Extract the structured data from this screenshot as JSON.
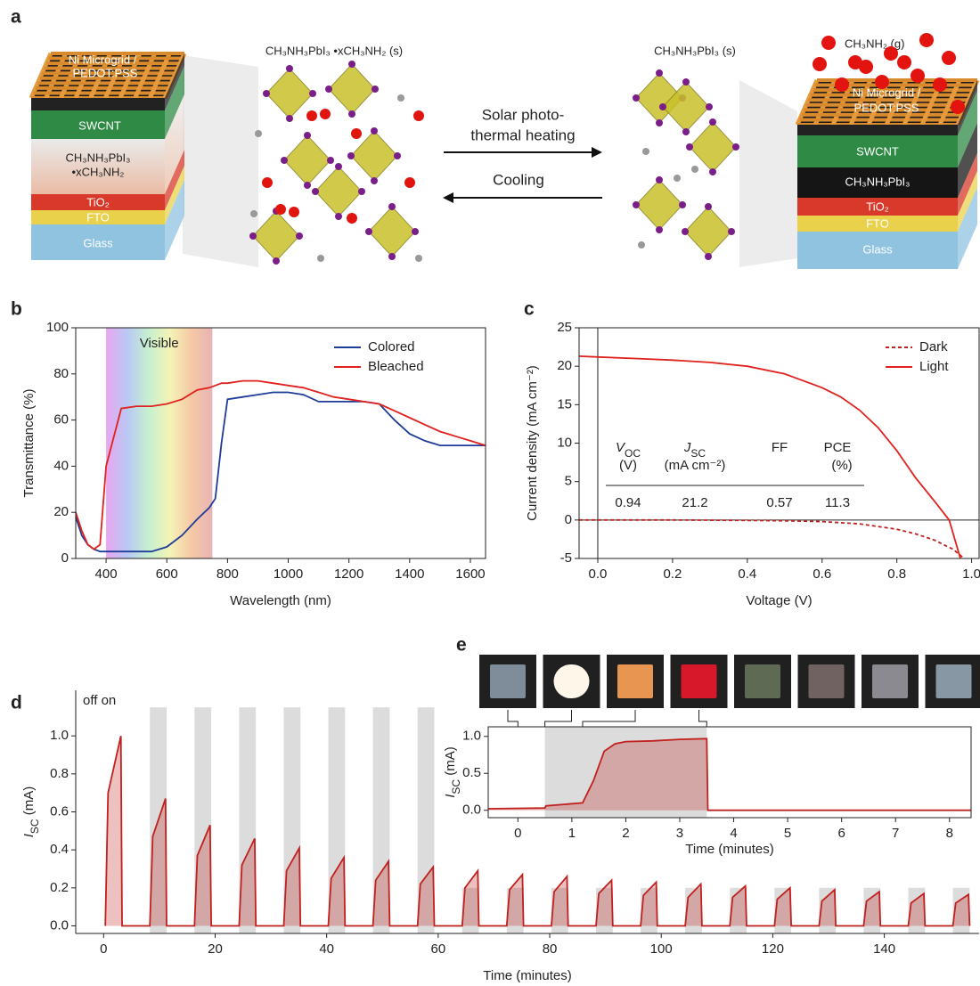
{
  "panel_labels": [
    "a",
    "b",
    "c",
    "d",
    "e"
  ],
  "panel_a": {
    "left_stack": [
      "Ni Microgrid /",
      "PEDOT:PSS",
      "SWCNT",
      "CH₃NH₃PbI₃",
      "•xCH₃NH₂",
      "TiO₂",
      "FTO",
      "Glass"
    ],
    "left_crystal": "CH₃NH₃PbI₃ •xCH₃NH₂ (s)",
    "arrow_forward": [
      "Solar photo-",
      "thermal heating"
    ],
    "arrow_back": "Cooling",
    "right_crystal": "CH₃NH₃PbI₃ (s)",
    "gas": "CH₃NH₂ (g)",
    "right_stack": [
      "Ni Microgrid /",
      "PEDOT:PSS",
      "SWCNT",
      "CH₃NH₃PbI₃",
      "TiO₂",
      "FTO",
      "Glass"
    ]
  },
  "chart_data": [
    {
      "type": "line",
      "xlabel": "Wavelength (nm)",
      "ylabel": "Transmittance (%)",
      "box": true,
      "xlim": [
        300,
        1650
      ],
      "ylim": [
        0,
        100
      ],
      "xticks": [
        400,
        600,
        800,
        1000,
        1200,
        1400,
        1600
      ],
      "yticks": [
        0,
        20,
        40,
        60,
        80,
        100
      ],
      "annotation": "Visible",
      "band": [
        400,
        750
      ],
      "legend": "upper right",
      "series": [
        {
          "name": "Colored",
          "color": "#1f3c99",
          "x": [
            300,
            320,
            340,
            360,
            380,
            400,
            450,
            500,
            550,
            600,
            650,
            700,
            740,
            760,
            780,
            800,
            850,
            900,
            950,
            1000,
            1050,
            1100,
            1150,
            1200,
            1250,
            1300,
            1350,
            1400,
            1450,
            1500,
            1550,
            1600,
            1650
          ],
          "values": [
            18,
            10,
            6,
            4,
            3,
            3,
            3,
            3,
            3,
            5,
            10,
            17,
            22,
            26,
            50,
            69,
            70,
            71,
            72,
            72,
            71,
            68,
            68,
            68,
            68,
            67,
            60,
            54,
            51,
            49,
            49,
            49,
            49
          ]
        },
        {
          "name": "Bleached",
          "color": "#e0211d",
          "x": [
            300,
            320,
            340,
            360,
            380,
            400,
            450,
            500,
            550,
            600,
            650,
            700,
            740,
            760,
            780,
            800,
            850,
            900,
            950,
            1000,
            1050,
            1100,
            1150,
            1200,
            1250,
            1300,
            1350,
            1400,
            1450,
            1500,
            1550,
            1600,
            1650
          ],
          "values": [
            20,
            12,
            6,
            4,
            6,
            40,
            65,
            66,
            66,
            67,
            69,
            73,
            74,
            75,
            76,
            76,
            77,
            77,
            76,
            75,
            74,
            72,
            70,
            69,
            68,
            67,
            64,
            61,
            58,
            55,
            53,
            51,
            49
          ]
        }
      ]
    },
    {
      "type": "line",
      "xlabel": "Voltage (V)",
      "ylabel": "Current density (mA cm⁻²)",
      "box": true,
      "zero_lines": true,
      "xlim": [
        -0.05,
        1.02
      ],
      "ylim": [
        -5,
        25
      ],
      "xticks": [
        {
          "value": 0,
          "label": "0.0"
        },
        0.2,
        0.4,
        0.6,
        0.8,
        {
          "value": 1,
          "label": "1.0"
        }
      ],
      "yticks": [
        -5,
        0,
        5,
        10,
        15,
        20,
        25
      ],
      "legend": "upper right",
      "series": [
        {
          "name": "Dark",
          "color": "#c0201e",
          "dash": true,
          "x": [
            -0.05,
            0,
            0.2,
            0.4,
            0.5,
            0.6,
            0.7,
            0.8,
            0.85,
            0.9,
            0.95,
            0.98
          ],
          "values": [
            0,
            0,
            0,
            -0.05,
            -0.1,
            -0.2,
            -0.5,
            -1.2,
            -1.8,
            -2.6,
            -3.8,
            -5
          ]
        },
        {
          "name": "Light",
          "color": "#e0211d",
          "x": [
            -0.05,
            0,
            0.1,
            0.2,
            0.3,
            0.4,
            0.5,
            0.6,
            0.65,
            0.7,
            0.75,
            0.8,
            0.85,
            0.9,
            0.94,
            0.97
          ],
          "values": [
            21.3,
            21.2,
            21.0,
            20.8,
            20.5,
            20.0,
            19.0,
            17.2,
            16,
            14.3,
            12,
            9,
            5.5,
            2.5,
            0,
            -5
          ]
        }
      ],
      "table": {
        "columns": [
          {
            "symbol": [
              "V",
              "OC"
            ],
            "unit": "(V)",
            "value": 0.94
          },
          {
            "symbol": [
              "J",
              "SC"
            ],
            "unit": "(mA cm⁻²)",
            "value": 21.2
          },
          {
            "symbol": [
              "FF"
            ],
            "value": 0.57
          },
          {
            "symbol": [
              "PCE"
            ],
            "unit": "(%)",
            "value": 11.3
          }
        ]
      }
    },
    {
      "type": "area",
      "xlabel": "Time (minutes)",
      "ylabel": [
        "I",
        "SC",
        " (mA)"
      ],
      "color": "#c0201e",
      "xlim": [
        -5,
        157
      ],
      "ylim": [
        -0.04,
        1.24
      ],
      "xticks": [
        0,
        20,
        40,
        60,
        80,
        100,
        120,
        140
      ],
      "yticks": [
        {
          "value": 0,
          "label": "0.0"
        },
        0.2,
        0.4,
        0.6,
        0.8,
        {
          "value": 1,
          "label": "1.0"
        }
      ],
      "annotation": "off on",
      "x": [
        0.3,
        0.8,
        3.1,
        3.3,
        8.3,
        8.8,
        11.1,
        11.3,
        16.3,
        16.8,
        19.1,
        19.3,
        24.3,
        24.8,
        27.1,
        27.3,
        32.3,
        32.8,
        35.1,
        35.3,
        40.3,
        40.8,
        43.1,
        43.3,
        48.3,
        48.8,
        51.1,
        51.3,
        56.3,
        56.8,
        59.1,
        59.3,
        64.3,
        64.8,
        67.1,
        67.3,
        72.3,
        72.8,
        75.1,
        75.3,
        80.3,
        80.8,
        83.1,
        83.3,
        88.3,
        88.8,
        91.1,
        91.3,
        96.3,
        96.8,
        99.1,
        99.3,
        104.3,
        104.8,
        107.1,
        107.3,
        112.3,
        112.8,
        115.1,
        115.3,
        120.3,
        120.8,
        123.1,
        123.3,
        128.3,
        128.8,
        131.1,
        131.3,
        136.3,
        136.8,
        139.1,
        139.3,
        144.3,
        144.8,
        147.1,
        147.3,
        152.3,
        152.8,
        155.1,
        155.3
      ],
      "values": [
        0,
        0.7,
        1.0,
        0,
        0,
        0.47,
        0.67,
        0,
        0,
        0.37,
        0.53,
        0,
        0,
        0.32,
        0.46,
        0,
        0,
        0.29,
        0.41,
        0,
        0,
        0.25,
        0.36,
        0,
        0,
        0.24,
        0.34,
        0,
        0,
        0.22,
        0.31,
        0,
        0,
        0.2,
        0.29,
        0,
        0,
        0.19,
        0.27,
        0,
        0,
        0.18,
        0.26,
        0,
        0,
        0.17,
        0.24,
        0,
        0,
        0.16,
        0.23,
        0,
        0,
        0.15,
        0.22,
        0,
        0,
        0.15,
        0.21,
        0,
        0,
        0.14,
        0.2,
        0,
        0,
        0.13,
        0.19,
        0,
        0,
        0.13,
        0.18,
        0,
        0,
        0.12,
        0.17,
        0,
        0,
        0.12,
        0.165,
        0
      ],
      "shaded": [
        [
          8.3,
          11.3,
          1.15
        ],
        [
          16.3,
          19.3,
          1.15
        ],
        [
          24.3,
          27.3,
          1.15
        ],
        [
          32.3,
          35.3,
          1.15
        ],
        [
          40.3,
          43.3,
          1.15
        ],
        [
          48.3,
          51.3,
          1.15
        ],
        [
          56.3,
          59.3,
          1.15
        ],
        [
          64.3,
          67.3,
          0.2
        ],
        [
          72.3,
          75.3,
          0.2
        ],
        [
          80.3,
          83.3,
          0.2
        ],
        [
          88.3,
          91.3,
          0.2
        ],
        [
          96.3,
          99.3,
          0.2
        ],
        [
          104.3,
          107.3,
          0.2
        ],
        [
          112.3,
          115.3,
          0.2
        ],
        [
          120.3,
          123.3,
          0.2
        ],
        [
          128.3,
          131.3,
          0.2
        ],
        [
          136.3,
          139.3,
          0.2
        ],
        [
          144.3,
          147.3,
          0.2
        ],
        [
          152.3,
          155.3,
          0.2
        ]
      ]
    },
    {
      "type": "area",
      "xlabel": "Time (minutes)",
      "ylabel": [
        "I",
        "SC",
        " (mA)"
      ],
      "color": "#c0201e",
      "inset": true,
      "box": true,
      "xlim": [
        -0.55,
        8.4
      ],
      "ylim": [
        -0.1,
        1.13
      ],
      "xticks": [
        0,
        1,
        2,
        3,
        4,
        5,
        6,
        7,
        8
      ],
      "yticks": [
        {
          "value": 0,
          "label": "0.0"
        },
        0.5,
        {
          "value": 1,
          "label": "1.0"
        }
      ],
      "x": [
        -0.55,
        0.5,
        0.52,
        1.2,
        1.4,
        1.6,
        1.8,
        2.0,
        2.5,
        3.0,
        3.5,
        3.52,
        8.4
      ],
      "values": [
        0.02,
        0.03,
        0.06,
        0.1,
        0.4,
        0.8,
        0.9,
        0.93,
        0.94,
        0.96,
        0.97,
        0,
        0
      ],
      "shaded": [
        [
          0.5,
          3.5,
          1.13
        ]
      ]
    }
  ]
}
